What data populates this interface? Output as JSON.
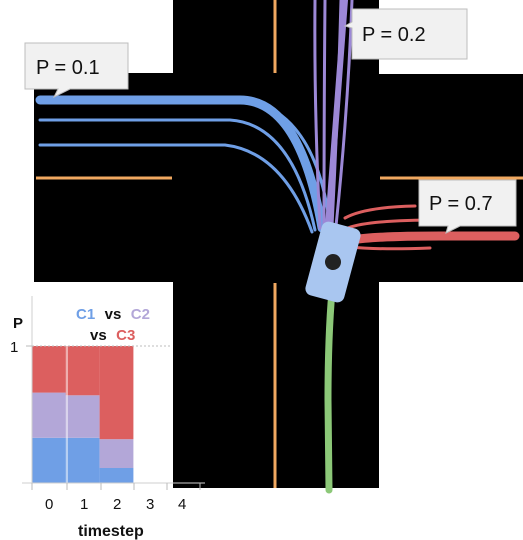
{
  "callouts": {
    "left": "P = 0.1",
    "top": "P = 0.2",
    "right": "P = 0.7"
  },
  "colors": {
    "road": "#000000",
    "lane_line": "#f0a860",
    "curb": "#ffffff",
    "c1": "#6f9fe6",
    "c2": "#b3a7d8",
    "c3": "#dc5f5f",
    "vehicle": "#a9c6f0",
    "history": "#8cc878",
    "ego_marker": "#222222"
  },
  "icons": {
    "vehicle": "car-icon",
    "history": "past-trajectory-path"
  },
  "chart_data": {
    "type": "bar",
    "stacked": true,
    "title": {
      "c1": "C1",
      "vs1": "vs",
      "c2": "C2",
      "vs2": "vs",
      "c3": "C3"
    },
    "xlabel": "timestep",
    "ylabel": "P",
    "x_ticks": [
      "0",
      "1",
      "2",
      "3",
      "4"
    ],
    "y_ticks": [
      "1"
    ],
    "ylim": [
      0,
      1
    ],
    "categories": [
      "0",
      "1",
      "2"
    ],
    "series": [
      {
        "name": "C1",
        "color": "#6f9fe6",
        "values": [
          0.33,
          0.33,
          0.11
        ]
      },
      {
        "name": "C2",
        "color": "#b3a7d8",
        "values": [
          0.33,
          0.31,
          0.21
        ]
      },
      {
        "name": "C3",
        "color": "#dc5f5f",
        "values": [
          0.34,
          0.36,
          0.68
        ]
      }
    ]
  }
}
